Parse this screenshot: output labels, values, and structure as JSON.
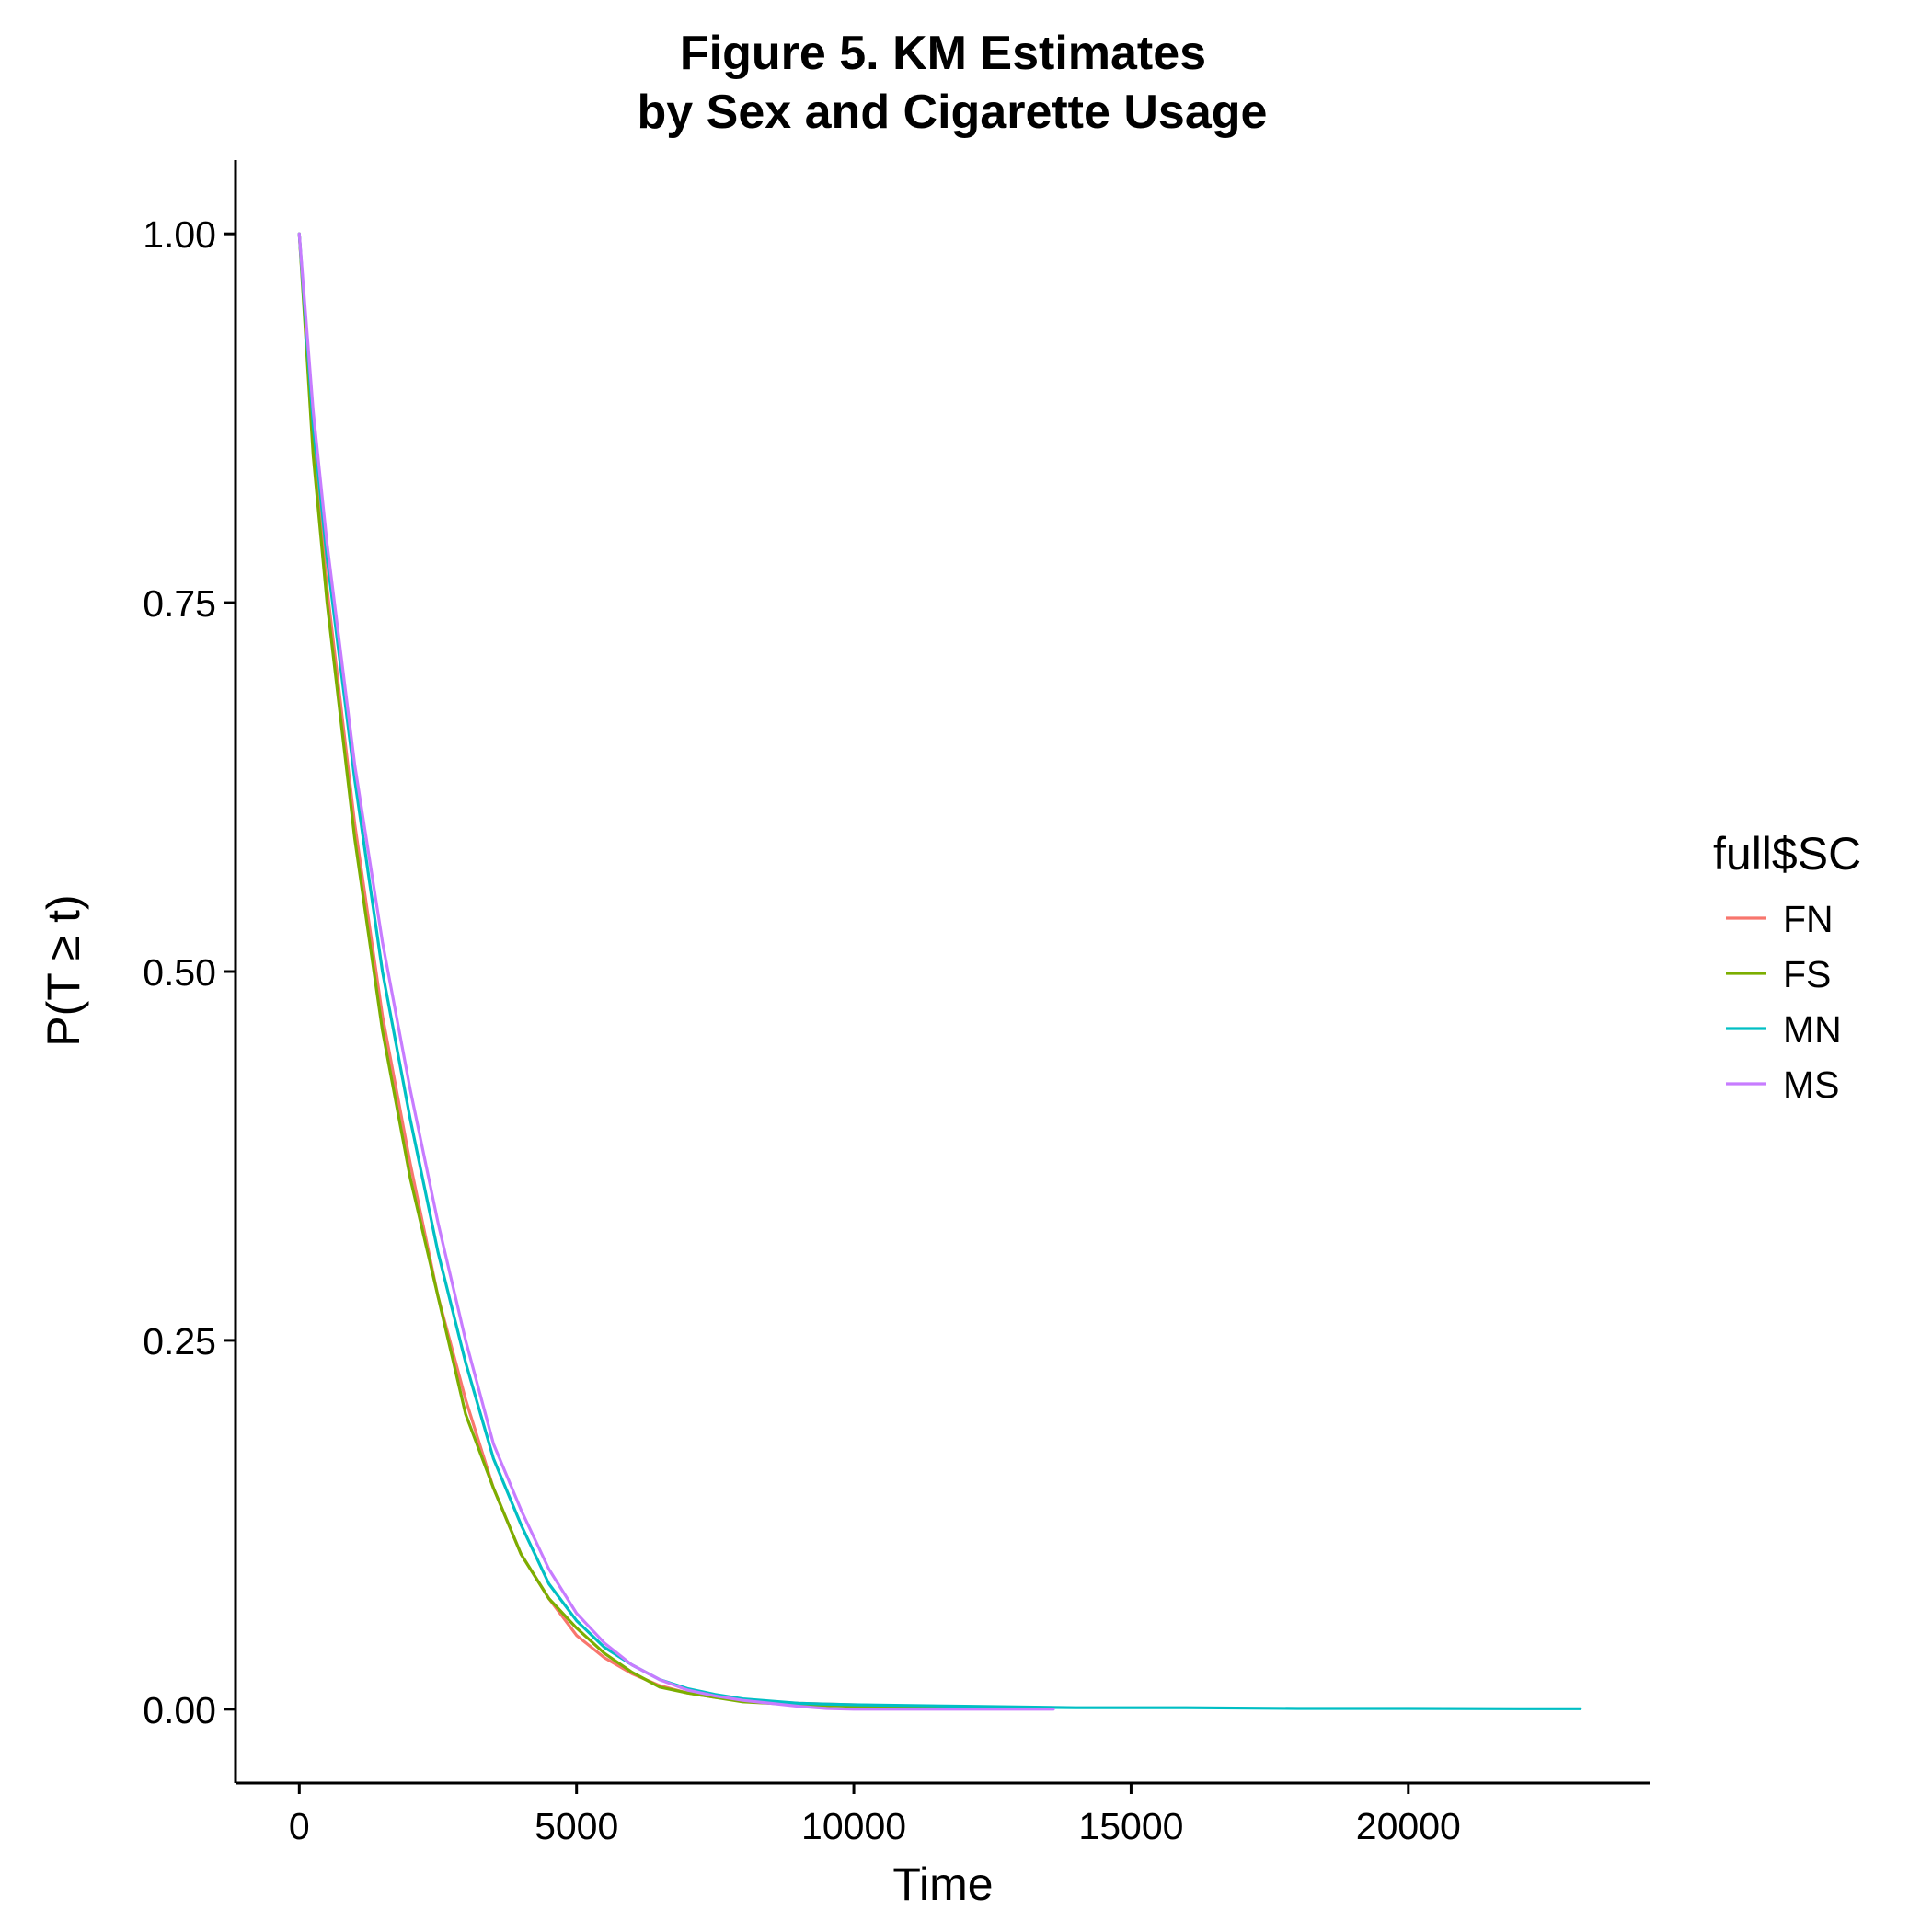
{
  "chart_data": {
    "type": "line",
    "title": "Figure 5. KM Estimates",
    "subtitle": "by Sex and Cigarette Usage",
    "xlabel": "Time",
    "ylabel": "P(T ≥ t)",
    "xlim": [
      -1150,
      24350
    ],
    "ylim": [
      -0.05,
      1.05
    ],
    "xticks": [
      0,
      5000,
      10000,
      15000,
      20000
    ],
    "xtick_labels": [
      "0",
      "5000",
      "10000",
      "15000",
      "20000"
    ],
    "yticks": [
      0,
      0.25,
      0.5,
      0.75,
      1.0
    ],
    "ytick_labels": [
      "0.00",
      "0.25",
      "0.50",
      "0.75",
      "1.00"
    ],
    "grid": false,
    "legend": {
      "title": "full$SC",
      "position": "right"
    },
    "series": [
      {
        "name": "FN",
        "color": "#F8766D",
        "x": [
          0,
          250,
          500,
          1000,
          1500,
          2000,
          2500,
          3000,
          3500,
          4000,
          4500,
          5000,
          5500,
          6000,
          6500,
          7000,
          7500,
          8000,
          9000,
          10000,
          11000,
          12000,
          13000,
          13500
        ],
        "y": [
          1.0,
          0.86,
          0.76,
          0.6,
          0.47,
          0.37,
          0.28,
          0.21,
          0.15,
          0.105,
          0.075,
          0.05,
          0.035,
          0.024,
          0.016,
          0.011,
          0.008,
          0.006,
          0.004,
          0.003,
          0.002,
          0.0015,
          0.001,
          0.001
        ]
      },
      {
        "name": "FS",
        "color": "#7CAE00",
        "x": [
          0,
          250,
          500,
          1000,
          1500,
          2000,
          2500,
          3000,
          3500,
          4000,
          4500,
          5000,
          5500,
          6000,
          6500,
          7000,
          7500,
          8000,
          9000,
          10000,
          11000,
          12000
        ],
        "y": [
          1.0,
          0.85,
          0.75,
          0.59,
          0.46,
          0.36,
          0.28,
          0.2,
          0.15,
          0.105,
          0.075,
          0.055,
          0.038,
          0.025,
          0.015,
          0.011,
          0.008,
          0.005,
          0.003,
          0.002,
          0.0015,
          0.001
        ]
      },
      {
        "name": "MN",
        "color": "#00BFC4",
        "x": [
          0,
          250,
          500,
          1000,
          1500,
          2000,
          2500,
          3000,
          3500,
          4000,
          4500,
          5000,
          5500,
          6000,
          6500,
          7000,
          7500,
          8000,
          9000,
          10000,
          12000,
          14000,
          16000,
          18000,
          20000,
          22000,
          23100
        ],
        "y": [
          1.0,
          0.87,
          0.78,
          0.63,
          0.5,
          0.4,
          0.31,
          0.235,
          0.17,
          0.125,
          0.085,
          0.06,
          0.042,
          0.03,
          0.02,
          0.014,
          0.01,
          0.007,
          0.004,
          0.003,
          0.002,
          0.001,
          0.001,
          0.0005,
          0.0005,
          0.0003,
          0.0003
        ]
      },
      {
        "name": "MS",
        "color": "#C77CFF",
        "x": [
          0,
          250,
          500,
          1000,
          1500,
          2000,
          2500,
          3000,
          3500,
          4000,
          4500,
          5000,
          5500,
          6000,
          6500,
          7000,
          7500,
          8000,
          8500,
          9000,
          9500,
          10000,
          11000,
          12000,
          13000,
          13600
        ],
        "y": [
          1.0,
          0.88,
          0.79,
          0.64,
          0.52,
          0.42,
          0.33,
          0.25,
          0.18,
          0.135,
          0.095,
          0.065,
          0.045,
          0.03,
          0.02,
          0.013,
          0.009,
          0.006,
          0.004,
          0.002,
          0.0005,
          0.0,
          0.0,
          0.0,
          0.0,
          0.0
        ]
      }
    ]
  }
}
